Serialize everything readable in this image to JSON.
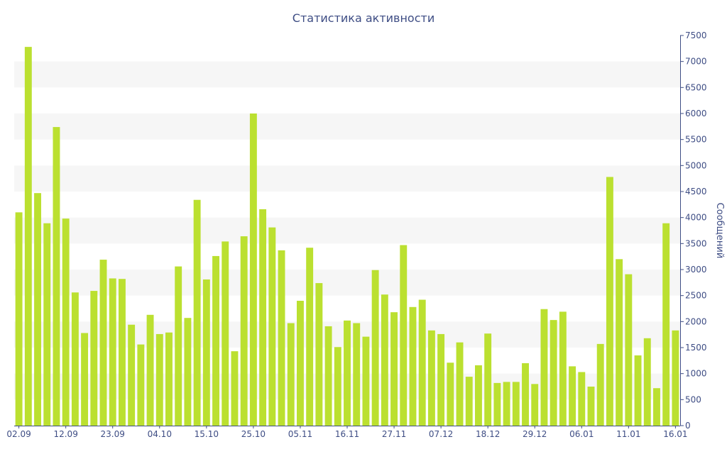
{
  "chart_data": {
    "type": "bar",
    "title": "Статистика активности",
    "xlabel": "",
    "ylabel": "Сообщений",
    "ylim": [
      0,
      7500
    ],
    "y_ticks": [
      0,
      500,
      1000,
      1500,
      2000,
      2500,
      3000,
      3500,
      4000,
      4500,
      5000,
      5500,
      6000,
      6500,
      7000,
      7500
    ],
    "x_tick_labels": [
      {
        "label": "02.09",
        "index": 0
      },
      {
        "label": "12.09",
        "index": 5
      },
      {
        "label": "23.09",
        "index": 10
      },
      {
        "label": "04.10",
        "index": 15
      },
      {
        "label": "15.10",
        "index": 20
      },
      {
        "label": "25.10",
        "index": 25
      },
      {
        "label": "05.11",
        "index": 30
      },
      {
        "label": "16.11",
        "index": 35
      },
      {
        "label": "27.11",
        "index": 40
      },
      {
        "label": "07.12",
        "index": 45
      },
      {
        "label": "18.12",
        "index": 50
      },
      {
        "label": "29.12",
        "index": 55
      },
      {
        "label": "06.01",
        "index": 60
      },
      {
        "label": "11.01",
        "index": 65
      },
      {
        "label": "16.01",
        "index": 70
      }
    ],
    "values": [
      4100,
      7280,
      4470,
      3890,
      5740,
      3980,
      2560,
      1780,
      2590,
      3190,
      2830,
      2820,
      1940,
      1560,
      2130,
      1760,
      1790,
      3060,
      2070,
      4340,
      2810,
      3260,
      3540,
      1430,
      3640,
      6000,
      4160,
      3810,
      3370,
      1970,
      2400,
      3420,
      2740,
      1910,
      1510,
      2020,
      1970,
      1710,
      2990,
      2520,
      2180,
      3470,
      2280,
      2420,
      1830,
      1760,
      1210,
      1600,
      940,
      1160,
      1770,
      820,
      840,
      840,
      1200,
      800,
      2240,
      2030,
      2190,
      1140,
      1030,
      750,
      1570,
      4780,
      3200,
      2910,
      1350,
      1680,
      720,
      3890,
      1830
    ],
    "colors": {
      "bar": "#bbe030",
      "axis": "#3e4d84",
      "band": "#f6f6f6"
    },
    "grid": "alternating-bands",
    "legend": "none",
    "y_axis_position": "right"
  }
}
